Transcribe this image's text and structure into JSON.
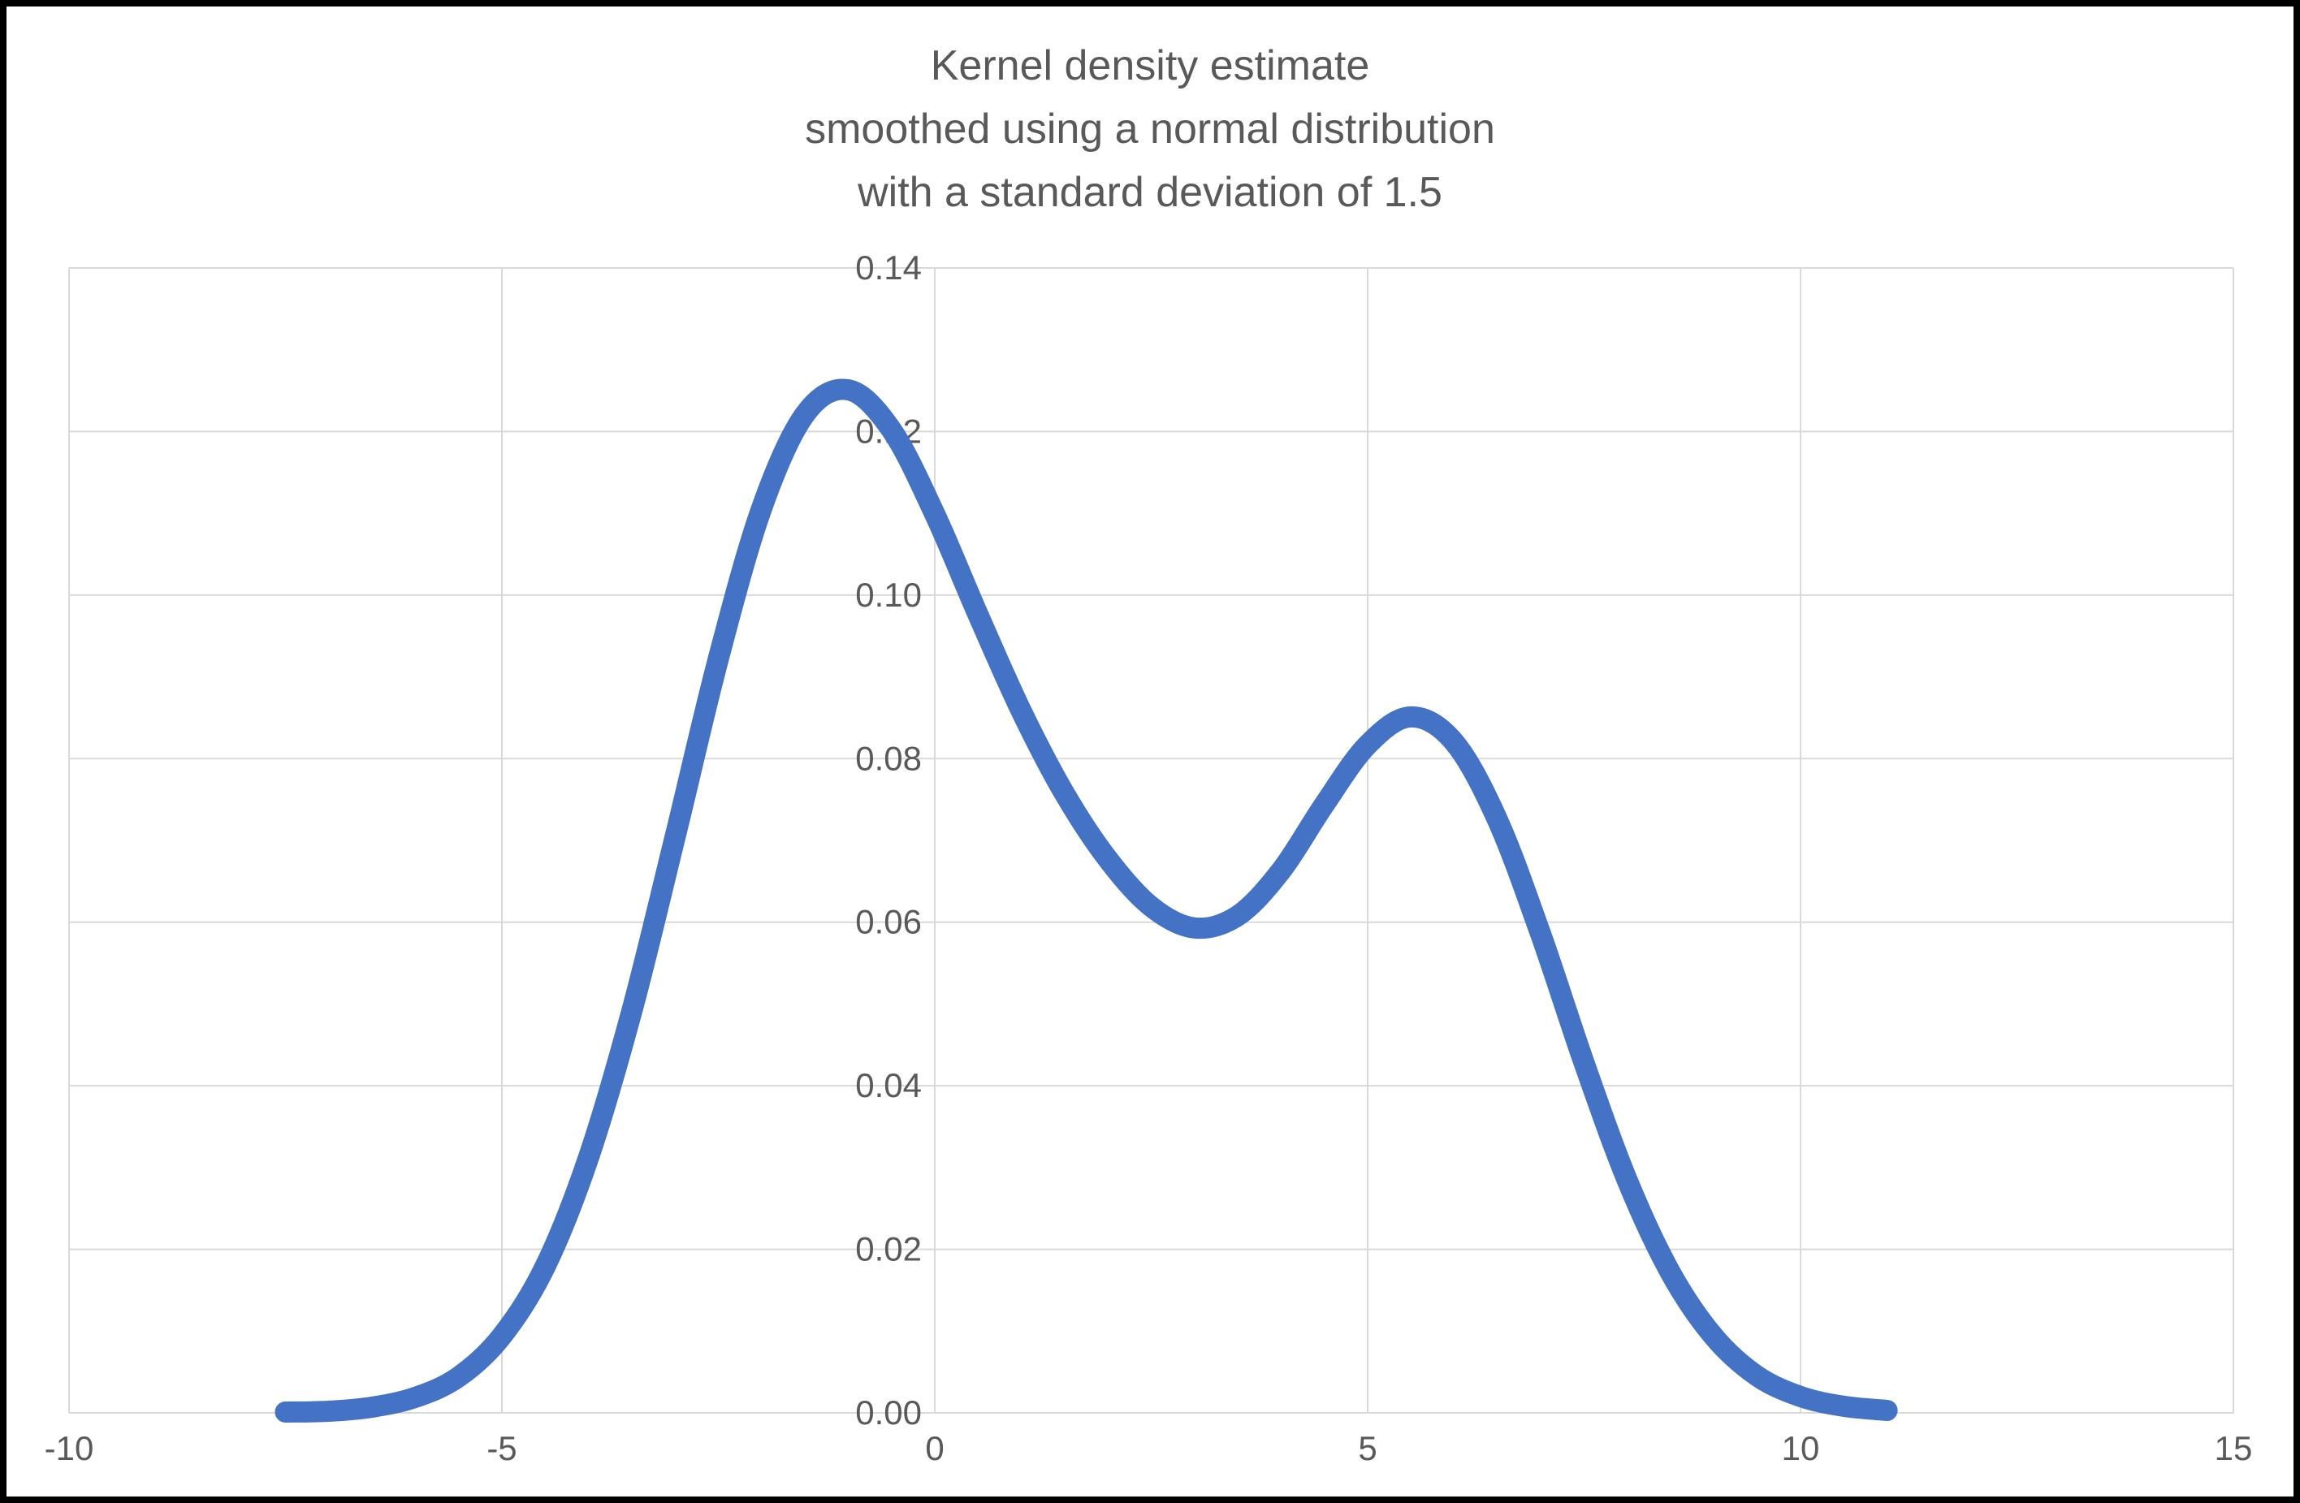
{
  "title": {
    "lines": [
      "Kernel density estimate",
      "smoothed using a normal distribution",
      "with a standard deviation of 1.5"
    ]
  },
  "chart_data": {
    "type": "line",
    "title": "Kernel density estimate smoothed using a normal distribution with a standard deviation of 1.5",
    "xlabel": "",
    "ylabel": "",
    "xlim": [
      -10,
      15
    ],
    "ylim": [
      0,
      0.14
    ],
    "x_ticks": [
      -10,
      -5,
      0,
      5,
      10,
      15
    ],
    "x_tick_labels": [
      "-10",
      "-5",
      "0",
      "5",
      "10",
      "15"
    ],
    "y_ticks": [
      0,
      0.02,
      0.04,
      0.06,
      0.08,
      0.1,
      0.12,
      0.14
    ],
    "y_tick_labels": [
      "0.00",
      "0.02",
      "0.04",
      "0.06",
      "0.08",
      "0.10",
      "0.12",
      "0.14"
    ],
    "grid": true,
    "legend": "none",
    "y_axis_position_x": 0,
    "series": [
      {
        "name": "Kernel density estimate",
        "color": "#4472C4",
        "x": [
          -7.5,
          -7,
          -6.5,
          -6,
          -5.5,
          -5,
          -4.5,
          -4,
          -3.5,
          -3,
          -2.5,
          -2,
          -1.5,
          -1,
          -0.5,
          0,
          0.5,
          1,
          1.5,
          2,
          2.5,
          3,
          3.5,
          4,
          4.5,
          5,
          5.5,
          6,
          6.5,
          7,
          7.5,
          8,
          8.5,
          9,
          9.5,
          10,
          10.5,
          11
        ],
        "y": [
          0.0001,
          0.0002,
          0.0007,
          0.0019,
          0.0044,
          0.0094,
          0.0179,
          0.0312,
          0.0491,
          0.0704,
          0.0922,
          0.1106,
          0.1221,
          0.1251,
          0.1202,
          0.1099,
          0.0976,
          0.0858,
          0.0757,
          0.0677,
          0.0619,
          0.0593,
          0.0608,
          0.0663,
          0.0744,
          0.0817,
          0.0851,
          0.082,
          0.0725,
          0.0585,
          0.0428,
          0.0284,
          0.0171,
          0.0093,
          0.0045,
          0.002,
          0.0008,
          0.0003
        ]
      }
    ]
  },
  "colors": {
    "line": "#4472C4",
    "grid": "#D9D9D9",
    "text": "#595959",
    "border": "#000000",
    "background": "#FFFFFF"
  }
}
